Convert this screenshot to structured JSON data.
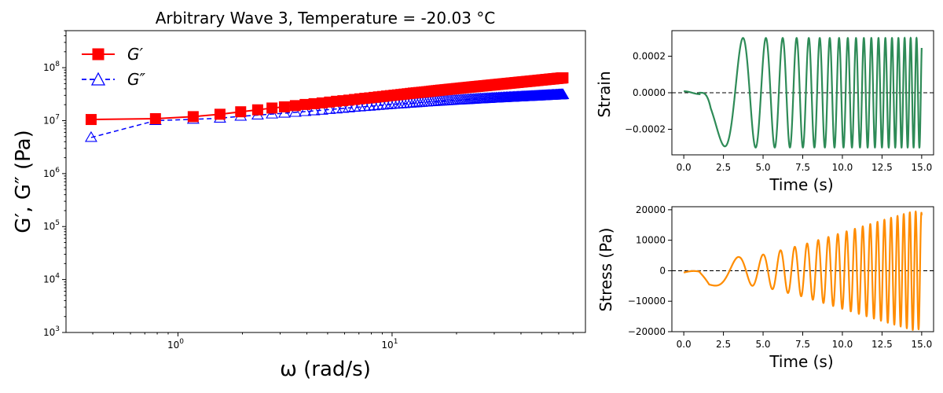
{
  "chart_data": [
    {
      "type": "line",
      "scale": "log-log",
      "title": "Arbitrary Wave 3, Temperature = -20.03 °C",
      "xlabel": "ω (rad/s)",
      "ylabel": "G′, G″ (Pa)",
      "xlim": [
        0.3,
        80
      ],
      "ylim": [
        1000,
        500000000
      ],
      "x_ticks": [
        1,
        10
      ],
      "x_ticks_exp": [
        "0",
        "1"
      ],
      "y_ticks": [
        1000,
        10000,
        100000,
        1000000,
        10000000,
        100000000
      ],
      "y_ticks_exp": [
        "3",
        "4",
        "5",
        "6",
        "7",
        "8"
      ],
      "legend_position": "top-left",
      "series": [
        {
          "name": "G′",
          "color": "#ff0000",
          "marker": "square",
          "line": "solid",
          "x": [
            0.393,
            0.785,
            1.178,
            1.571,
            1.963,
            2.356,
            2.749,
            3.142,
            3.534,
            3.927,
            4.32,
            4.712,
            5.105,
            5.498,
            5.89,
            6.283,
            6.676,
            7.069,
            7.461,
            7.854,
            8.247,
            8.639,
            9.032,
            9.425,
            9.817,
            10.21,
            10.603,
            10.996,
            11.388,
            11.781,
            12.174,
            12.566,
            12.959,
            13.352,
            13.744,
            14.137,
            14.53,
            14.923,
            15.315,
            15.708,
            16.101,
            16.493,
            16.886,
            17.279,
            17.671,
            18.064,
            18.457,
            18.85,
            19.242,
            19.635,
            20.028,
            20.42,
            20.813,
            21.206,
            21.598,
            21.991,
            22.384,
            22.777,
            23.169,
            23.562,
            23.955,
            24.347,
            24.74,
            25.133,
            25.525,
            25.918,
            26.311,
            26.704,
            27.096,
            27.489,
            27.882,
            28.274,
            28.667,
            29.06,
            29.452,
            29.845,
            30.238,
            30.631,
            31.023,
            31.416,
            31.809,
            32.201,
            32.594,
            32.987,
            33.379,
            33.772,
            34.165,
            34.558,
            34.95,
            35.343,
            35.736,
            36.128,
            36.521,
            36.914,
            37.306,
            37.699,
            38.092,
            38.485,
            38.877,
            39.27,
            39.663,
            40.055,
            40.448,
            40.841,
            41.233,
            41.626,
            42.019,
            42.412,
            42.804,
            43.197,
            43.59,
            43.982,
            44.375,
            44.768,
            45.16,
            45.553,
            45.946,
            46.338,
            46.731,
            47.124,
            47.517,
            47.909,
            48.302,
            48.695,
            49.087,
            49.48,
            49.873,
            50.265,
            50.658,
            51.051,
            51.444,
            51.836,
            52.229,
            52.622,
            53.014,
            53.407,
            53.8,
            54.192,
            54.585,
            54.978,
            55.371,
            55.763,
            56.156,
            56.549,
            56.941,
            57.334,
            57.727,
            58.119,
            58.512,
            58.905,
            59.298,
            59.69,
            60.083,
            60.476,
            60.868,
            61.261,
            61.654,
            62.046,
            62.439,
            62.832
          ],
          "values": [
            10500000,
            10900000,
            11900000,
            13200000,
            14700000,
            16000000,
            17300000,
            18200000,
            19200000,
            20200000,
            20900000,
            21600000,
            22400000,
            23200000,
            23800000,
            24400000,
            25100000,
            25800000,
            26400000,
            26900000,
            27500000,
            28100000,
            28600000,
            29200000,
            29700000,
            30200000,
            30700000,
            31200000,
            31700000,
            32200000,
            32700000,
            33200000,
            33600000,
            34000000,
            34400000,
            34800000,
            35200000,
            35600000,
            36100000,
            36500000,
            36900000,
            37300000,
            37700000,
            38000000,
            38400000,
            38700000,
            39100000,
            39400000,
            39700000,
            40100000,
            40400000,
            40700000,
            41000000,
            41400000,
            41700000,
            42000000,
            42300000,
            42600000,
            42900000,
            43200000,
            43500000,
            43800000,
            44000000,
            44300000,
            44600000,
            44900000,
            45100000,
            45400000,
            45700000,
            45900000,
            46200000,
            46500000,
            46700000,
            47000000,
            47200000,
            47500000,
            47700000,
            48000000,
            48200000,
            48500000,
            48700000,
            49000000,
            49200000,
            49400000,
            49700000,
            49900000,
            50100000,
            50400000,
            50600000,
            50800000,
            51100000,
            51300000,
            51500000,
            51700000,
            52000000,
            52200000,
            52400000,
            52600000,
            52800000,
            53100000,
            53300000,
            53500000,
            53700000,
            53900000,
            54100000,
            54300000,
            54500000,
            54700000,
            54900000,
            55100000,
            55300000,
            55500000,
            55700000,
            55900000,
            56100000,
            56300000,
            56500000,
            56700000,
            56900000,
            57100000,
            57300000,
            57500000,
            57700000,
            57900000,
            58100000,
            58300000,
            58500000,
            58600000,
            58800000,
            59000000,
            59200000,
            59400000,
            59600000,
            59800000,
            59900000,
            60100000,
            60300000,
            60500000,
            60700000,
            60800000,
            61000000,
            61200000,
            61400000,
            61500000,
            61700000,
            61900000,
            62100000,
            62200000,
            62400000,
            62600000,
            62700000,
            62900000,
            63100000,
            63200000,
            63400000,
            63600000,
            63700000,
            63900000,
            64100000,
            64200000
          ]
        },
        {
          "name": "G″",
          "color": "#0000ff",
          "marker": "triangle-open",
          "line": "dashed",
          "x": [
            0.393,
            0.785,
            1.178,
            1.571,
            1.963,
            2.356,
            2.749,
            3.142,
            3.534,
            3.927,
            4.32,
            4.712,
            5.105,
            5.498,
            5.89,
            6.283,
            6.676,
            7.069,
            7.461,
            7.854,
            8.247,
            8.639,
            9.032,
            9.425,
            9.817,
            10.21,
            10.603,
            10.996,
            11.388,
            11.781,
            12.174,
            12.566,
            12.959,
            13.352,
            13.744,
            14.137,
            14.53,
            14.923,
            15.315,
            15.708,
            16.101,
            16.493,
            16.886,
            17.279,
            17.671,
            18.064,
            18.457,
            18.85,
            19.242,
            19.635,
            20.028,
            20.42,
            20.813,
            21.206,
            21.598,
            21.991,
            22.384,
            22.777,
            23.169,
            23.562,
            23.955,
            24.347,
            24.74,
            25.133,
            25.525,
            25.918,
            26.311,
            26.704,
            27.096,
            27.489,
            27.882,
            28.274,
            28.667,
            29.06,
            29.452,
            29.845,
            30.238,
            30.631,
            31.023,
            31.416,
            31.809,
            32.201,
            32.594,
            32.987,
            33.379,
            33.772,
            34.165,
            34.558,
            34.95,
            35.343,
            35.736,
            36.128,
            36.521,
            36.914,
            37.306,
            37.699,
            38.092,
            38.485,
            38.877,
            39.27,
            39.663,
            40.055,
            40.448,
            40.841,
            41.233,
            41.626,
            42.019,
            42.412,
            42.804,
            43.197,
            43.59,
            43.982,
            44.375,
            44.768,
            45.16,
            45.553,
            45.946,
            46.338,
            46.731,
            47.124,
            47.517,
            47.909,
            48.302,
            48.695,
            49.087,
            49.48,
            49.873,
            50.265,
            50.658,
            51.051,
            51.444,
            51.836,
            52.229,
            52.622,
            53.014,
            53.407,
            53.8,
            54.192,
            54.585,
            54.978,
            55.371,
            55.763,
            56.156,
            56.549,
            56.941,
            57.334,
            57.727,
            58.119,
            58.512,
            58.905,
            59.298,
            59.69,
            60.083,
            60.476,
            60.868,
            61.261,
            61.654,
            62.046,
            62.439,
            62.832
          ],
          "values": [
            4800000,
            10000000,
            10600000,
            11100000,
            12100000,
            12700000,
            13300000,
            13800000,
            14300000,
            14800000,
            15300000,
            15700000,
            16200000,
            16600000,
            17000000,
            17400000,
            17800000,
            18100000,
            18400000,
            18700000,
            19000000,
            19300000,
            19600000,
            19800000,
            20100000,
            20300000,
            20500000,
            20700000,
            20900000,
            21100000,
            21300000,
            21500000,
            21700000,
            21900000,
            22100000,
            22300000,
            22400000,
            22600000,
            22700000,
            22900000,
            23000000,
            23200000,
            23300000,
            23400000,
            23600000,
            23700000,
            23800000,
            23900000,
            24100000,
            24200000,
            24300000,
            24400000,
            24500000,
            24600000,
            24700000,
            24800000,
            24900000,
            25000000,
            25100000,
            25200000,
            25300000,
            25400000,
            25500000,
            25600000,
            25700000,
            25800000,
            25800000,
            25900000,
            26000000,
            26100000,
            26200000,
            26200000,
            26300000,
            26400000,
            26500000,
            26500000,
            26600000,
            26700000,
            26700000,
            26800000,
            26900000,
            27000000,
            27000000,
            27100000,
            27200000,
            27200000,
            27300000,
            27300000,
            27400000,
            27500000,
            27500000,
            27600000,
            27600000,
            27700000,
            27800000,
            27800000,
            27900000,
            27900000,
            28000000,
            28000000,
            28100000,
            28200000,
            28200000,
            28300000,
            28300000,
            28400000,
            28400000,
            28500000,
            28500000,
            28600000,
            28600000,
            28700000,
            28700000,
            28800000,
            28800000,
            28900000,
            28900000,
            29000000,
            29000000,
            29100000,
            29100000,
            29200000,
            29200000,
            29300000,
            29300000,
            29400000,
            29400000,
            29500000,
            29500000,
            29600000,
            29600000,
            29700000,
            29700000,
            29800000,
            29800000,
            29900000,
            29900000,
            30000000,
            30000000,
            30000000,
            30100000,
            30100000,
            30200000,
            30200000,
            30300000,
            30300000,
            30300000,
            30400000,
            30400000,
            30500000,
            30500000,
            30600000,
            30600000,
            30600000,
            30700000,
            30700000,
            30800000,
            30800000,
            30800000,
            30900000
          ]
        }
      ]
    },
    {
      "type": "line",
      "xlabel": "Time (s)",
      "ylabel": "Strain",
      "xlim": [
        -0.75,
        15.75
      ],
      "ylim": [
        -0.00034,
        0.00034
      ],
      "x_ticks": [
        "0.0",
        "2.5",
        "5.0",
        "7.5",
        "10.0",
        "12.5",
        "15.0"
      ],
      "y_ticks": [
        "−0.0002",
        "0.0000",
        "0.0002"
      ],
      "y_tick_values": [
        -0.0002,
        0,
        0.0002
      ],
      "reference_line": {
        "y": 0,
        "style": "dashed",
        "color": "#000000"
      },
      "series": [
        {
          "color": "#2e8b57",
          "t_range": [
            0,
            15
          ],
          "amplitude": 0.0003,
          "envelope": [
            [
              0,
              0
            ],
            [
              0.9,
              0.0
            ],
            [
              1.2,
              3e-05
            ],
            [
              1.7,
              0.00028
            ],
            [
              3.0,
              0.0003
            ],
            [
              15,
              0.0003
            ]
          ],
          "phase_coeffs": [
            0.0,
            -0.7854,
            0.2513
          ],
          "description_points": [
            [
              0,
              1e-05
            ],
            [
              1.0,
              0.0
            ],
            [
              1.7,
              -0.00028
            ],
            [
              5.1,
              0.0003
            ],
            [
              6.7,
              -0.0003
            ],
            [
              7.7,
              0.0003
            ],
            [
              15,
              0.0
            ]
          ]
        }
      ]
    },
    {
      "type": "line",
      "xlabel": "Time (s)",
      "ylabel": "Stress (Pa)",
      "xlim": [
        -0.75,
        15.75
      ],
      "ylim": [
        -20000,
        21000
      ],
      "x_ticks": [
        "0.0",
        "2.5",
        "5.0",
        "7.5",
        "10.0",
        "12.5",
        "15.0"
      ],
      "y_ticks": [
        "−20000",
        "−10000",
        "0",
        "10000",
        "20000"
      ],
      "y_tick_values": [
        -20000,
        -10000,
        0,
        10000,
        20000
      ],
      "reference_line": {
        "y": 0,
        "style": "dashed",
        "color": "#000000"
      },
      "series": [
        {
          "color": "#ff8c00",
          "t_range": [
            0,
            15
          ],
          "amplitude_points": [
            [
              0,
              800
            ],
            [
              1.0,
              600
            ],
            [
              1.6,
              5000
            ],
            [
              3.5,
              4500
            ],
            [
              5,
              5300
            ],
            [
              7.5,
              8500
            ],
            [
              10,
              12500
            ],
            [
              12.5,
              16500
            ],
            [
              14.5,
              19500
            ],
            [
              15,
              19000
            ]
          ],
          "phase_coeffs": [
            0.35,
            -0.7854,
            0.2513
          ]
        }
      ]
    }
  ]
}
